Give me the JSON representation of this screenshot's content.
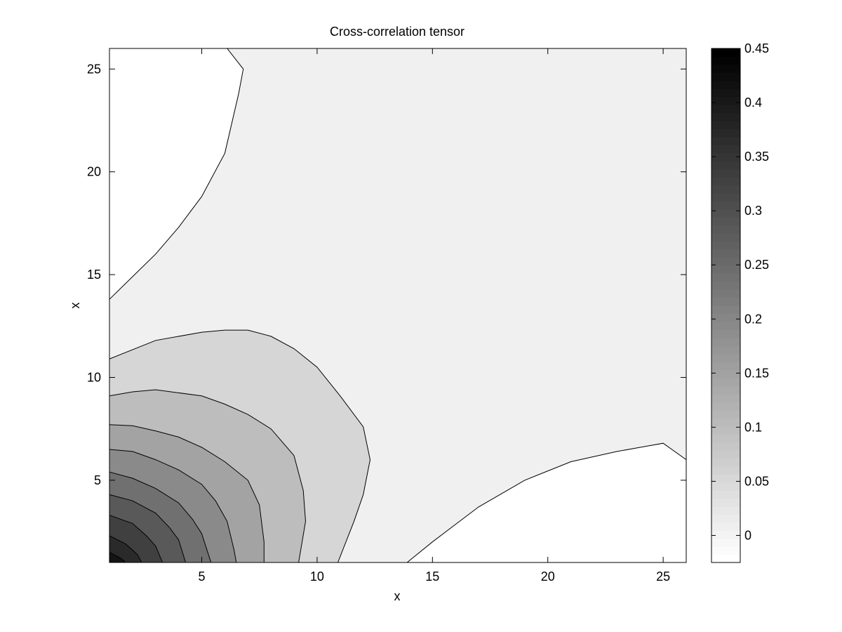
{
  "chart_data": {
    "type": "contourf",
    "title": "Cross-correlation tensor",
    "xlabel": "x",
    "ylabel": "x",
    "xlim": [
      1,
      26
    ],
    "ylim": [
      1,
      26
    ],
    "x_ticks": [
      5,
      10,
      15,
      20,
      25
    ],
    "y_ticks": [
      5,
      10,
      15,
      20,
      25
    ],
    "grid": false,
    "colormap": "gray",
    "colorbar": {
      "range": [
        -0.025,
        0.45
      ],
      "ticks": [
        0,
        0.05,
        0.1,
        0.15,
        0.2,
        0.25,
        0.3,
        0.35,
        0.4,
        0.45
      ],
      "tick_labels": [
        "0",
        "0.05",
        "0.1",
        "0.15",
        "0.2",
        "0.25",
        "0.3",
        "0.35",
        "0.4",
        "0.45"
      ],
      "steps": 64
    },
    "regions": [
      {
        "level": 0.01,
        "fill": "#f0f0f0",
        "polygon": [
          [
            1,
            1
          ],
          [
            26,
            1
          ],
          [
            26,
            26
          ],
          [
            1,
            26
          ]
        ]
      },
      {
        "level": -0.025,
        "fill": "#ffffff",
        "polygon": [
          [
            1,
            13.8
          ],
          [
            2,
            14.9
          ],
          [
            3,
            16
          ],
          [
            4,
            17.3
          ],
          [
            5,
            18.8
          ],
          [
            6,
            20.9
          ],
          [
            6.6,
            23.8
          ],
          [
            6.8,
            25
          ],
          [
            6.1,
            26
          ],
          [
            1,
            26
          ]
        ]
      },
      {
        "level": -0.025,
        "fill": "#ffffff",
        "polygon": [
          [
            13.9,
            1
          ],
          [
            15,
            2
          ],
          [
            17,
            3.7
          ],
          [
            19,
            5
          ],
          [
            21,
            5.9
          ],
          [
            23,
            6.4
          ],
          [
            25,
            6.8
          ],
          [
            26,
            6
          ],
          [
            26,
            1
          ]
        ]
      },
      {
        "level": 0.05,
        "fill": "#d6d6d6",
        "polygon": [
          [
            1,
            10.9
          ],
          [
            3,
            11.8
          ],
          [
            5,
            12.2
          ],
          [
            6,
            12.3
          ],
          [
            7,
            12.3
          ],
          [
            8,
            12
          ],
          [
            9,
            11.4
          ],
          [
            10,
            10.5
          ],
          [
            11,
            9.1
          ],
          [
            12,
            7.6
          ],
          [
            12.3,
            6
          ],
          [
            12,
            4.3
          ],
          [
            11.6,
            3
          ],
          [
            10.9,
            1
          ],
          [
            1,
            1
          ]
        ]
      },
      {
        "level": 0.1,
        "fill": "#bdbdbd",
        "polygon": [
          [
            1,
            9.1
          ],
          [
            2,
            9.3
          ],
          [
            3,
            9.4
          ],
          [
            5,
            9.1
          ],
          [
            6,
            8.7
          ],
          [
            7,
            8.2
          ],
          [
            8,
            7.5
          ],
          [
            9,
            6.2
          ],
          [
            9.4,
            4.5
          ],
          [
            9.5,
            3
          ],
          [
            9.2,
            1
          ],
          [
            1,
            1
          ]
        ]
      },
      {
        "level": 0.15,
        "fill": "#a3a3a3",
        "polygon": [
          [
            1,
            7.7
          ],
          [
            2,
            7.65
          ],
          [
            3,
            7.4
          ],
          [
            4,
            7.1
          ],
          [
            5,
            6.6
          ],
          [
            6,
            5.9
          ],
          [
            7,
            5
          ],
          [
            7.5,
            3.8
          ],
          [
            7.7,
            2
          ],
          [
            7.7,
            1
          ],
          [
            1,
            1
          ]
        ]
      },
      {
        "level": 0.2,
        "fill": "#8a8a8a",
        "polygon": [
          [
            1,
            6.5
          ],
          [
            2,
            6.4
          ],
          [
            3,
            6
          ],
          [
            4,
            5.5
          ],
          [
            5,
            4.8
          ],
          [
            5.6,
            4
          ],
          [
            6.1,
            3
          ],
          [
            6.4,
            1.6
          ],
          [
            6.5,
            1
          ],
          [
            1,
            1
          ]
        ]
      },
      {
        "level": 0.25,
        "fill": "#707070",
        "polygon": [
          [
            1,
            5.4
          ],
          [
            2,
            5.1
          ],
          [
            3,
            4.6
          ],
          [
            4,
            3.9
          ],
          [
            4.6,
            3.1
          ],
          [
            5,
            2.4
          ],
          [
            5.4,
            1
          ],
          [
            1,
            1
          ]
        ]
      },
      {
        "level": 0.3,
        "fill": "#595959",
        "polygon": [
          [
            1,
            4.3
          ],
          [
            2,
            4
          ],
          [
            3,
            3.4
          ],
          [
            3.6,
            2.7
          ],
          [
            4,
            2.1
          ],
          [
            4.3,
            1
          ],
          [
            1,
            1
          ]
        ]
      },
      {
        "level": 0.35,
        "fill": "#404040",
        "polygon": [
          [
            1,
            3.3
          ],
          [
            2,
            2.9
          ],
          [
            2.6,
            2.3
          ],
          [
            3,
            1.8
          ],
          [
            3.3,
            1
          ],
          [
            1,
            1
          ]
        ]
      },
      {
        "level": 0.4,
        "fill": "#2a2a2a",
        "polygon": [
          [
            1,
            2.3
          ],
          [
            1.7,
            1.9
          ],
          [
            2.2,
            1.4
          ],
          [
            2.4,
            1
          ],
          [
            1,
            1
          ]
        ]
      },
      {
        "level": 0.45,
        "fill": "#141414",
        "polygon": [
          [
            1,
            1.5
          ],
          [
            1.5,
            1.2
          ],
          [
            1.7,
            1
          ],
          [
            1,
            1
          ]
        ]
      }
    ]
  }
}
